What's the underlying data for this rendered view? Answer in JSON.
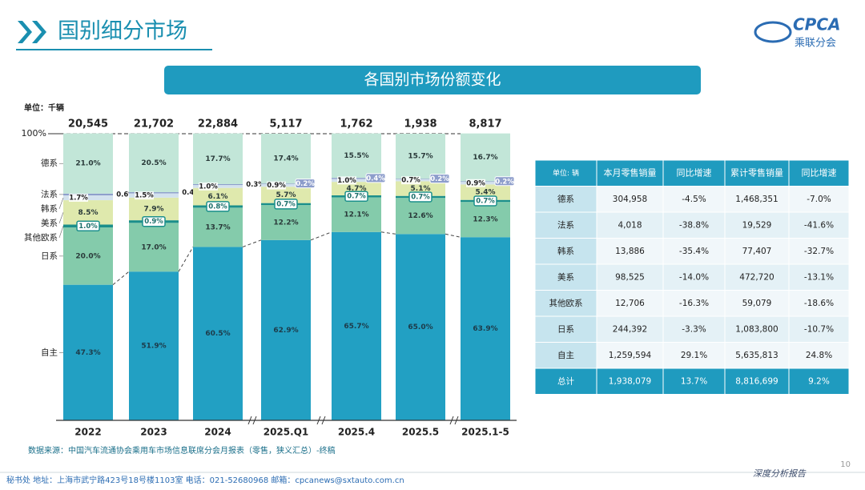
{
  "header": {
    "title": "国别细分市场",
    "logo": "CPCA",
    "logo_sub": "乘联分会"
  },
  "chart_data": {
    "type": "bar",
    "stacked": true,
    "title": "各国别市场份额变化",
    "unit": "单位：千辆",
    "categories": [
      "2022",
      "2023",
      "2024",
      "2025.Q1",
      "2025.4",
      "2025.5",
      "2025.1-5"
    ],
    "totals": {
      "values": [
        20545,
        21702,
        22884,
        5117,
        1762,
        1938,
        8817
      ],
      "value_labels": [
        "20,545",
        "21,702",
        "22,884",
        "5,117",
        "1,762",
        "1,938",
        "8,817"
      ]
    },
    "ylim": [
      0,
      100
    ],
    "yticks": [
      {
        "value": 100,
        "label": "100%"
      }
    ],
    "series": [
      {
        "name": "自主",
        "color": "#22a0c3",
        "values": [
          47.3,
          51.9,
          60.5,
          62.9,
          65.7,
          65.0,
          63.9
        ],
        "value_labels": [
          "47.3%",
          "51.9%",
          "60.5%",
          "62.9%",
          "65.7%",
          "65.0%",
          "63.9%"
        ]
      },
      {
        "name": "日系",
        "color": "#84cbab",
        "values": [
          20.0,
          17.0,
          13.7,
          12.2,
          12.1,
          12.6,
          12.3
        ],
        "value_labels": [
          "20.0%",
          "17.0%",
          "13.7%",
          "12.2%",
          "12.1%",
          "12.6%",
          "12.3%"
        ]
      },
      {
        "name": "其他欧系",
        "color": "#1b8f8b",
        "values": [
          1.0,
          0.9,
          0.8,
          0.7,
          0.7,
          0.7,
          0.7
        ],
        "value_labels": [
          "1.0%",
          "0.9%",
          "0.8%",
          "0.7%",
          "0.7%",
          "0.7%",
          "0.7%"
        ]
      },
      {
        "name": "美系",
        "color": "#dfe9ad",
        "values": [
          8.5,
          7.9,
          6.1,
          5.7,
          4.7,
          5.1,
          5.4
        ],
        "value_labels": [
          "8.5%",
          "7.9%",
          "6.1%",
          "5.7%",
          "4.7%",
          "5.1%",
          "5.4%"
        ]
      },
      {
        "name": "韩系",
        "color": "#d3e2ee",
        "values": [
          1.7,
          1.5,
          1.0,
          0.9,
          1.0,
          0.7,
          0.9
        ],
        "value_labels": [
          "1.7%",
          "1.5%",
          "1.0%",
          "0.9%",
          "1.0%",
          "0.7%",
          "0.9%"
        ]
      },
      {
        "name": "法系",
        "color": "#8d9dcb",
        "values": [
          0.6,
          0.4,
          0.3,
          0.2,
          0.4,
          0.2,
          0.2
        ],
        "value_labels": [
          "0.6%",
          "0.4%",
          "0.3%",
          "0.2%",
          "0.4%",
          "0.2%",
          "0.2%"
        ]
      },
      {
        "name": "德系",
        "color": "#c2e6d8",
        "values": [
          21.0,
          20.5,
          17.7,
          17.4,
          15.5,
          15.7,
          16.7
        ],
        "value_labels": [
          "21.0%",
          "20.5%",
          "17.7%",
          "17.4%",
          "15.5%",
          "15.7%",
          "16.7%"
        ]
      }
    ],
    "source": "数据来源：中国汽车流通协会乘用车市场信息联席分会月报表（零售，狭义汇总）-终稿"
  },
  "table": {
    "header": [
      "单位: 辆",
      "本月零售销量",
      "同比增速",
      "累计零售销量",
      "同比增速"
    ],
    "rows": [
      [
        "德系",
        "304,958",
        "-4.5%",
        "1,468,351",
        "-7.0%"
      ],
      [
        "法系",
        "4,018",
        "-38.8%",
        "19,529",
        "-41.6%"
      ],
      [
        "韩系",
        "13,886",
        "-35.4%",
        "77,407",
        "-32.7%"
      ],
      [
        "美系",
        "98,525",
        "-14.0%",
        "472,720",
        "-13.1%"
      ],
      [
        "其他欧系",
        "12,706",
        "-16.3%",
        "59,079",
        "-18.6%"
      ],
      [
        "日系",
        "244,392",
        "-3.3%",
        "1,083,800",
        "-10.7%"
      ],
      [
        "自主",
        "1,259,594",
        "29.1%",
        "5,635,813",
        "24.8%"
      ],
      [
        "总计",
        "1,938,079",
        "13.7%",
        "8,816,699",
        "9.2%"
      ]
    ]
  },
  "footer": {
    "address": "秘书处  地址：上海市武宁路423号18号楼1103室  电话：021-52680968  邮箱：cpcanews@sxtauto.com.cn",
    "report": "深度分析报告",
    "page": "10"
  }
}
